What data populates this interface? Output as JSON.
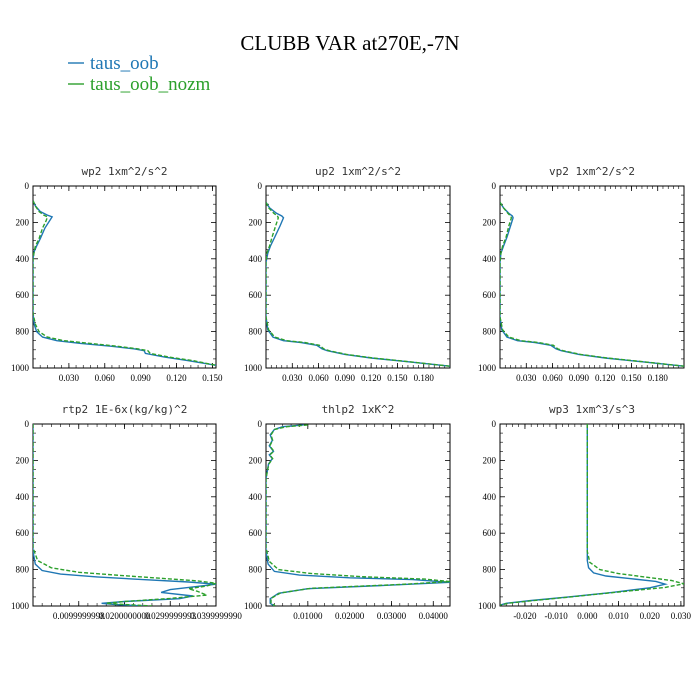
{
  "figure": {
    "title": "CLUBB VAR at270E,-7N",
    "legend": [
      {
        "label": "taus_oob",
        "color": "#1f77b4"
      },
      {
        "label": "taus_oob_nozm",
        "color": "#2ca02c"
      }
    ]
  },
  "chart_data": [
    {
      "type": "line",
      "title": "wp2  1xm^2/s^2",
      "xlim": [
        0,
        0.153
      ],
      "ylim": [
        1000,
        0
      ],
      "xticks": [
        0.03,
        0.06,
        0.09,
        0.12,
        0.15
      ],
      "xtick_labels": [
        "0.030",
        "0.060",
        "0.090",
        "0.120",
        "0.150"
      ],
      "yticks": [
        0,
        200,
        400,
        600,
        800,
        1000
      ],
      "ytick_labels": [
        "0",
        "200",
        "400",
        "600",
        "800",
        "1000"
      ],
      "series": [
        {
          "color": "#1f77b4",
          "dash": "solid",
          "x": [
            0.0,
            0.002,
            0.006,
            0.012,
            0.016,
            0.014,
            0.01,
            0.006,
            0.003,
            0.001,
            0.0,
            0.0,
            0.001,
            0.003,
            0.008,
            0.02,
            0.04,
            0.065,
            0.085,
            0.093,
            0.094,
            0.11,
            0.13,
            0.153
          ],
          "y": [
            80,
            110,
            140,
            160,
            170,
            190,
            230,
            290,
            330,
            360,
            400,
            700,
            760,
            800,
            830,
            850,
            865,
            880,
            895,
            905,
            920,
            940,
            960,
            985
          ]
        },
        {
          "color": "#2ca02c",
          "dash": "dash",
          "x": [
            0.0,
            0.002,
            0.005,
            0.009,
            0.012,
            0.011,
            0.008,
            0.005,
            0.002,
            0.001,
            0.0,
            0.0,
            0.002,
            0.005,
            0.012,
            0.026,
            0.048,
            0.07,
            0.088,
            0.096,
            0.098,
            0.114,
            0.134,
            0.153
          ],
          "y": [
            80,
            110,
            140,
            160,
            170,
            190,
            230,
            290,
            330,
            360,
            400,
            700,
            760,
            800,
            830,
            850,
            865,
            880,
            895,
            905,
            920,
            940,
            960,
            985
          ]
        }
      ]
    },
    {
      "type": "line",
      "title": "up2  1xm^2/s^2",
      "xlim": [
        0,
        0.21
      ],
      "ylim": [
        1000,
        0
      ],
      "xticks": [
        0.03,
        0.06,
        0.09,
        0.12,
        0.15,
        0.18
      ],
      "xtick_labels": [
        "0.030",
        "0.060",
        "0.090",
        "0.120",
        "0.150",
        "0.180"
      ],
      "yticks": [
        0,
        200,
        400,
        600,
        800,
        1000
      ],
      "ytick_labels": [
        "0",
        "200",
        "400",
        "600",
        "800",
        "1000"
      ],
      "series": [
        {
          "color": "#1f77b4",
          "dash": "solid",
          "x": [
            0.0,
            0.004,
            0.012,
            0.018,
            0.02,
            0.016,
            0.01,
            0.005,
            0.002,
            0.0,
            0.0,
            0.002,
            0.008,
            0.02,
            0.04,
            0.058,
            0.064,
            0.07,
            0.09,
            0.12,
            0.16,
            0.21
          ],
          "y": [
            90,
            120,
            150,
            165,
            175,
            220,
            280,
            330,
            370,
            420,
            720,
            790,
            830,
            850,
            860,
            875,
            895,
            905,
            925,
            945,
            965,
            990
          ]
        },
        {
          "color": "#2ca02c",
          "dash": "dash",
          "x": [
            0.0,
            0.003,
            0.009,
            0.013,
            0.014,
            0.011,
            0.007,
            0.004,
            0.001,
            0.0,
            0.0,
            0.003,
            0.01,
            0.024,
            0.044,
            0.061,
            0.066,
            0.072,
            0.092,
            0.122,
            0.162,
            0.21
          ],
          "y": [
            90,
            120,
            150,
            165,
            175,
            220,
            280,
            330,
            370,
            420,
            720,
            790,
            830,
            850,
            860,
            875,
            895,
            905,
            925,
            945,
            965,
            990
          ]
        }
      ]
    },
    {
      "type": "line",
      "title": "vp2  1xm^2/s^2",
      "xlim": [
        0,
        0.21
      ],
      "ylim": [
        1000,
        0
      ],
      "xticks": [
        0.03,
        0.06,
        0.09,
        0.12,
        0.15,
        0.18
      ],
      "xtick_labels": [
        "0.030",
        "0.060",
        "0.090",
        "0.120",
        "0.150",
        "0.180"
      ],
      "yticks": [
        0,
        200,
        400,
        600,
        800,
        1000
      ],
      "ytick_labels": [
        "0",
        "200",
        "400",
        "600",
        "800",
        "1000"
      ],
      "series": [
        {
          "color": "#1f77b4",
          "dash": "solid",
          "x": [
            0.0,
            0.004,
            0.01,
            0.014,
            0.015,
            0.012,
            0.008,
            0.004,
            0.001,
            0.0,
            0.0,
            0.002,
            0.008,
            0.02,
            0.04,
            0.058,
            0.064,
            0.07,
            0.09,
            0.12,
            0.16,
            0.21
          ],
          "y": [
            90,
            120,
            150,
            165,
            175,
            220,
            280,
            330,
            370,
            420,
            720,
            790,
            830,
            850,
            860,
            875,
            895,
            905,
            925,
            945,
            965,
            990
          ]
        },
        {
          "color": "#2ca02c",
          "dash": "dash",
          "x": [
            0.0,
            0.004,
            0.009,
            0.012,
            0.013,
            0.01,
            0.007,
            0.003,
            0.001,
            0.0,
            0.0,
            0.003,
            0.01,
            0.024,
            0.044,
            0.061,
            0.066,
            0.072,
            0.092,
            0.122,
            0.162,
            0.21
          ],
          "y": [
            90,
            120,
            150,
            165,
            175,
            220,
            280,
            330,
            370,
            420,
            720,
            790,
            830,
            850,
            860,
            875,
            895,
            905,
            925,
            945,
            965,
            990
          ]
        }
      ]
    },
    {
      "type": "line",
      "title": "rtp2  1E-6x(kg/kg)^2",
      "xlim": [
        0,
        0.04
      ],
      "ylim": [
        1000,
        0
      ],
      "xticks": [
        0.01,
        0.02,
        0.03,
        0.04
      ],
      "xtick_labels": [
        "0.0099999998",
        "0.0200000000",
        "0.0299999993",
        "0.0399999990"
      ],
      "yticks": [
        0,
        200,
        400,
        600,
        800,
        1000
      ],
      "ytick_labels": [
        "0",
        "200",
        "400",
        "600",
        "800",
        "1000"
      ],
      "series": [
        {
          "color": "#1f77b4",
          "dash": "solid",
          "x": [
            0.0,
            0.0,
            0.0005,
            0.002,
            0.006,
            0.014,
            0.024,
            0.034,
            0.04,
            0.035,
            0.03,
            0.028,
            0.035,
            0.032,
            0.02,
            0.015,
            0.018,
            0.024
          ],
          "y": [
            0,
            700,
            770,
            805,
            825,
            840,
            855,
            868,
            880,
            895,
            910,
            925,
            945,
            960,
            975,
            985,
            992,
            1000
          ]
        },
        {
          "color": "#2ca02c",
          "dash": "dash",
          "x": [
            0.0,
            0.0,
            0.001,
            0.004,
            0.01,
            0.019,
            0.028,
            0.036,
            0.04,
            0.038,
            0.034,
            0.036,
            0.038,
            0.03,
            0.02,
            0.016,
            0.02,
            0.026
          ],
          "y": [
            0,
            680,
            750,
            790,
            815,
            832,
            848,
            862,
            875,
            890,
            905,
            920,
            940,
            958,
            975,
            985,
            992,
            1000
          ]
        }
      ]
    },
    {
      "type": "line",
      "title": "thlp2  1xK^2",
      "xlim": [
        0,
        0.044
      ],
      "ylim": [
        1000,
        0
      ],
      "xticks": [
        0.01,
        0.02,
        0.03,
        0.04
      ],
      "xtick_labels": [
        "0.01000",
        "0.02000",
        "0.03000",
        "0.04000"
      ],
      "yticks": [
        0,
        200,
        400,
        600,
        800,
        1000
      ],
      "ytick_labels": [
        "0",
        "200",
        "400",
        "600",
        "800",
        "1000"
      ],
      "series": [
        {
          "color": "#1f77b4",
          "dash": "solid",
          "x": [
            0.009,
            0.004,
            0.002,
            0.001,
            0.0015,
            0.0008,
            0.0018,
            0.0008,
            0.0015,
            0.0006,
            0.0003,
            0.0,
            0.0,
            0.0005,
            0.002,
            0.008,
            0.02,
            0.035,
            0.044,
            0.03,
            0.01,
            0.003,
            0.001,
            0.001,
            0.002
          ],
          "y": [
            5,
            15,
            30,
            60,
            90,
            120,
            150,
            170,
            190,
            220,
            260,
            300,
            700,
            770,
            810,
            830,
            845,
            855,
            870,
            885,
            905,
            930,
            960,
            985,
            1000
          ]
        },
        {
          "color": "#2ca02c",
          "dash": "dash",
          "x": [
            0.01,
            0.005,
            0.002,
            0.0012,
            0.0016,
            0.0009,
            0.0019,
            0.0009,
            0.0016,
            0.0007,
            0.0003,
            0.0,
            0.0,
            0.0008,
            0.003,
            0.011,
            0.024,
            0.038,
            0.044,
            0.032,
            0.011,
            0.0035,
            0.0012,
            0.0012,
            0.0022
          ],
          "y": [
            5,
            15,
            30,
            60,
            90,
            120,
            150,
            170,
            190,
            220,
            260,
            300,
            680,
            755,
            800,
            822,
            840,
            852,
            866,
            882,
            902,
            928,
            958,
            984,
            1000
          ]
        }
      ]
    },
    {
      "type": "line",
      "title": "wp3  1xm^3/s^3",
      "xlim": [
        -0.028,
        0.031
      ],
      "ylim": [
        1000,
        0
      ],
      "xticks": [
        -0.02,
        -0.01,
        0.0,
        0.01,
        0.02,
        0.03
      ],
      "xtick_labels": [
        "-0.020",
        "-0.010",
        "0.000",
        "0.010",
        "0.020",
        "0.030"
      ],
      "yticks": [
        0,
        200,
        400,
        600,
        800,
        1000
      ],
      "ytick_labels": [
        "0",
        "200",
        "400",
        "600",
        "800",
        "1000"
      ],
      "series": [
        {
          "color": "#1f77b4",
          "dash": "solid",
          "x": [
            0.0,
            0.0,
            0.0004,
            0.002,
            0.006,
            0.014,
            0.022,
            0.025,
            0.02,
            0.008,
            -0.006,
            -0.018,
            -0.026,
            -0.028
          ],
          "y": [
            0,
            750,
            790,
            818,
            835,
            850,
            865,
            880,
            900,
            925,
            950,
            970,
            985,
            995
          ]
        },
        {
          "color": "#2ca02c",
          "dash": "dash",
          "x": [
            0.0,
            0.0,
            0.0008,
            0.004,
            0.01,
            0.019,
            0.027,
            0.031,
            0.025,
            0.01,
            -0.004,
            -0.016,
            -0.025,
            -0.028
          ],
          "y": [
            0,
            700,
            760,
            800,
            822,
            842,
            860,
            878,
            898,
            923,
            948,
            968,
            984,
            995
          ]
        }
      ]
    }
  ]
}
